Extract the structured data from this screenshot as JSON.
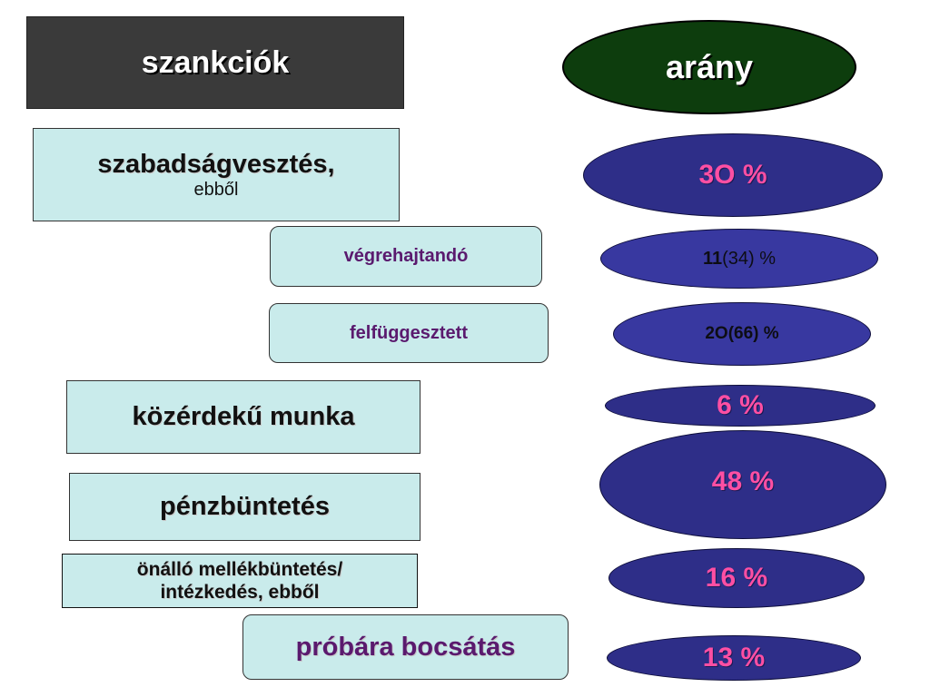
{
  "header": {
    "left_title": "szankciók",
    "right_title": "arány"
  },
  "sanctions": {
    "szabadsag": {
      "label": "szabadságvesztés,",
      "sub": "ebből"
    },
    "vegrehajtando": {
      "label": "végrehajtandó"
    },
    "felfuggesztett": {
      "label": "felfüggesztett"
    },
    "kozerdeku": {
      "label": "közérdekű munka"
    },
    "penzbuntetes": {
      "label": "pénzbüntetés"
    },
    "onallo": {
      "label_line1": "önálló mellékbüntetés/",
      "label_line2": "intézkedés, ebből"
    },
    "probara": {
      "label": "próbára bocsátás"
    }
  },
  "ratios": {
    "szabadsag": "3O %",
    "vegrehajtando": {
      "main": "11",
      "paren": "(34)",
      "pct": "%"
    },
    "felfuggesztett": "2O(66) %",
    "kozerdeku": "6 %",
    "penzbuntetes": "48 %",
    "onallo": "16 %",
    "probara": "13 %"
  },
  "colors": {
    "title_box_bg": "#3a3a3a",
    "title_oval_bg": "#0d3d0d",
    "label_box_bg": "#c9ebeb",
    "ratio_oval_bg": "#2e2e88",
    "ratio_text_pink": "#ff4fa3",
    "sub_label_purple": "#5a1a6e"
  }
}
